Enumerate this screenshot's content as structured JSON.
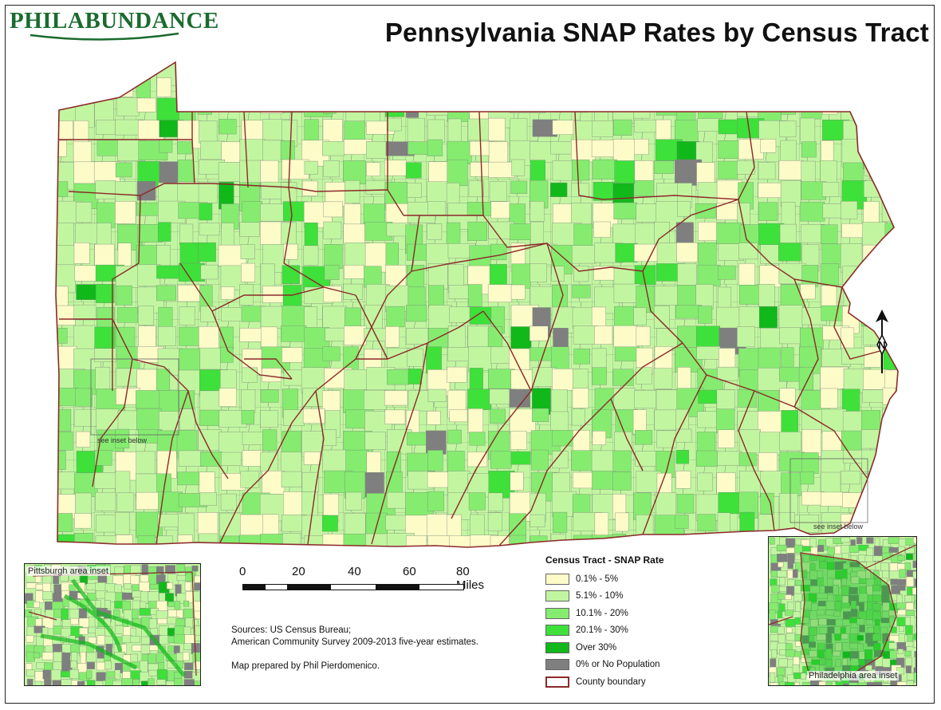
{
  "header": {
    "logo_text": "PHILABUNDANCE",
    "title": "Pennsylvania SNAP Rates by Census Tract"
  },
  "map": {
    "inset_note_pittsburgh": "see inset below",
    "inset_note_philadelphia": "see inset below",
    "county_boundary_color": "#8b2a2a",
    "tract_line_color": "#7a8a7a"
  },
  "insets": {
    "pittsburgh_label": "Pittsburgh area inset",
    "philadelphia_label": "Philadelphia area inset"
  },
  "scale": {
    "ticks": [
      "0",
      "20",
      "40",
      "60",
      "80 Miles"
    ]
  },
  "sources": {
    "line1": "Sources: US Census Bureau;",
    "line2": "American Community Survey 2009-2013 five-year estimates.",
    "prepared": "Map prepared by Phil Pierdomenico."
  },
  "legend": {
    "title": "Census Tract - SNAP Rate",
    "items": [
      {
        "label": "0.1% - 5%",
        "color": "#fdfbc8"
      },
      {
        "label": "5.1% - 10%",
        "color": "#c2f5a0"
      },
      {
        "label": "10.1% - 20%",
        "color": "#85ec6f"
      },
      {
        "label": "20.1% - 30%",
        "color": "#3ee03a"
      },
      {
        "label": "Over 30%",
        "color": "#10b81a"
      },
      {
        "label": "0% or No Population",
        "color": "#7f7f7f"
      },
      {
        "label": "County boundary",
        "color": "#ffffff",
        "border": "#8b2a2a"
      }
    ]
  },
  "north_arrow": {
    "label": "N"
  }
}
